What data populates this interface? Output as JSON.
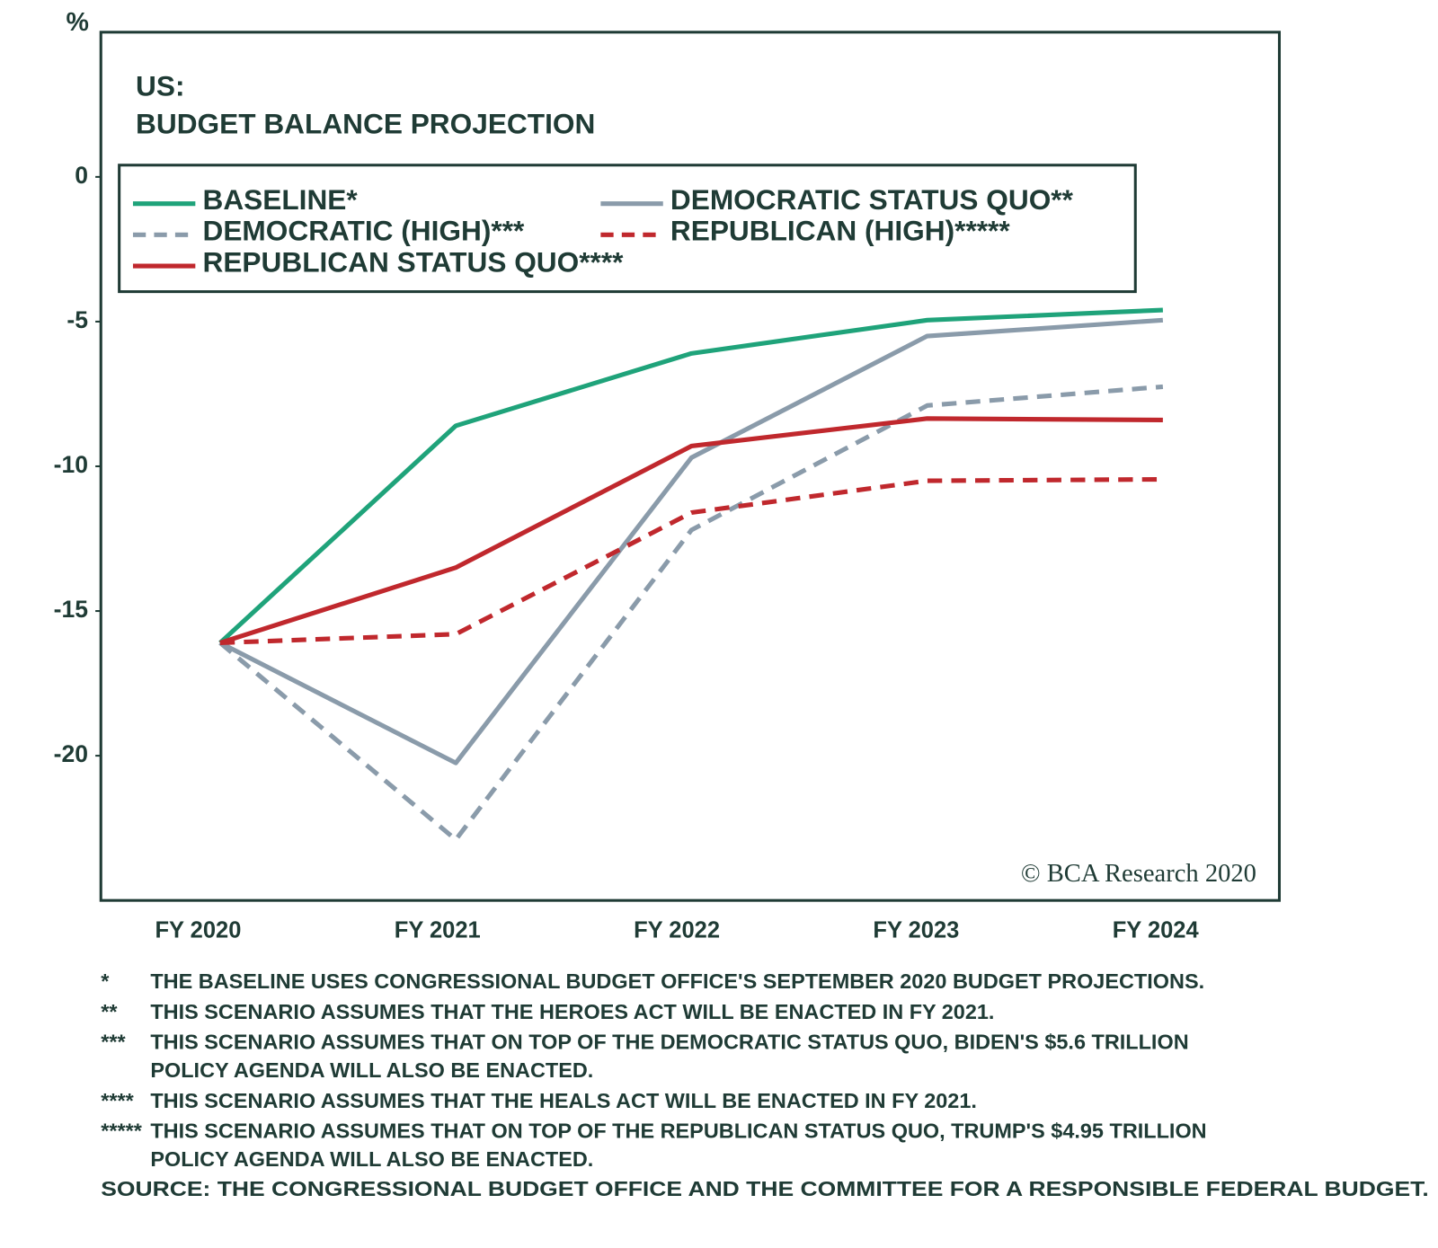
{
  "chart_data": {
    "type": "line",
    "title": "BUDGET BALANCE PROJECTION",
    "title_prefix": "US:",
    "y_unit": "%",
    "watermark": "© BCA Research 2020",
    "categories": [
      "FY 2020",
      "FY 2021",
      "FY 2022",
      "FY 2023",
      "FY 2024"
    ],
    "ylim": [
      -25,
      5
    ],
    "yticks": [
      0,
      -5,
      -10,
      -15,
      -20
    ],
    "grid": false,
    "series": [
      {
        "name": "BASELINE*",
        "color": "#1fa37a",
        "dashed": false,
        "values": [
          -16.1,
          -8.6,
          -6.1,
          -4.95,
          -4.6
        ]
      },
      {
        "name": "DEMOCRATIC STATUS QUO**",
        "color": "#8a9baa",
        "dashed": false,
        "values": [
          -16.1,
          -20.25,
          -9.7,
          -5.5,
          -4.95
        ]
      },
      {
        "name": "DEMOCRATIC (HIGH)***",
        "color": "#8a9baa",
        "dashed": true,
        "values": [
          -16.1,
          -22.9,
          -12.2,
          -7.9,
          -7.25
        ]
      },
      {
        "name": "REPUBLICAN (HIGH)*****",
        "color": "#c0282d",
        "dashed": true,
        "values": [
          -16.1,
          -15.8,
          -11.6,
          -10.5,
          -10.45
        ]
      },
      {
        "name": "REPUBLICAN STATUS QUO****",
        "color": "#c0282d",
        "dashed": false,
        "values": [
          -16.1,
          -13.5,
          -9.3,
          -8.35,
          -8.4
        ]
      }
    ]
  },
  "footnotes": [
    {
      "marker": "*",
      "lines": [
        "THE BASELINE USES CONGRESSIONAL BUDGET OFFICE'S SEPTEMBER 2020 BUDGET PROJECTIONS."
      ]
    },
    {
      "marker": "**",
      "lines": [
        "THIS SCENARIO ASSUMES THAT THE HEROES ACT WILL BE ENACTED IN FY 2021."
      ]
    },
    {
      "marker": "***",
      "lines": [
        "THIS SCENARIO ASSUMES THAT ON TOP OF THE DEMOCRATIC STATUS QUO, BIDEN'S $5.6 TRILLION",
        "POLICY AGENDA WILL ALSO BE ENACTED."
      ]
    },
    {
      "marker": "****",
      "lines": [
        "THIS SCENARIO ASSUMES THAT THE HEALS ACT WILL BE ENACTED IN  FY 2021."
      ]
    },
    {
      "marker": "*****",
      "lines": [
        "THIS SCENARIO ASSUMES THAT ON TOP OF THE REPUBLICAN STATUS QUO, TRUMP'S $4.95 TRILLION",
        "POLICY AGENDA WILL ALSO BE ENACTED."
      ]
    }
  ],
  "source": "SOURCE: THE CONGRESSIONAL BUDGET OFFICE AND THE COMMITTEE FOR A RESPONSIBLE FEDERAL BUDGET."
}
